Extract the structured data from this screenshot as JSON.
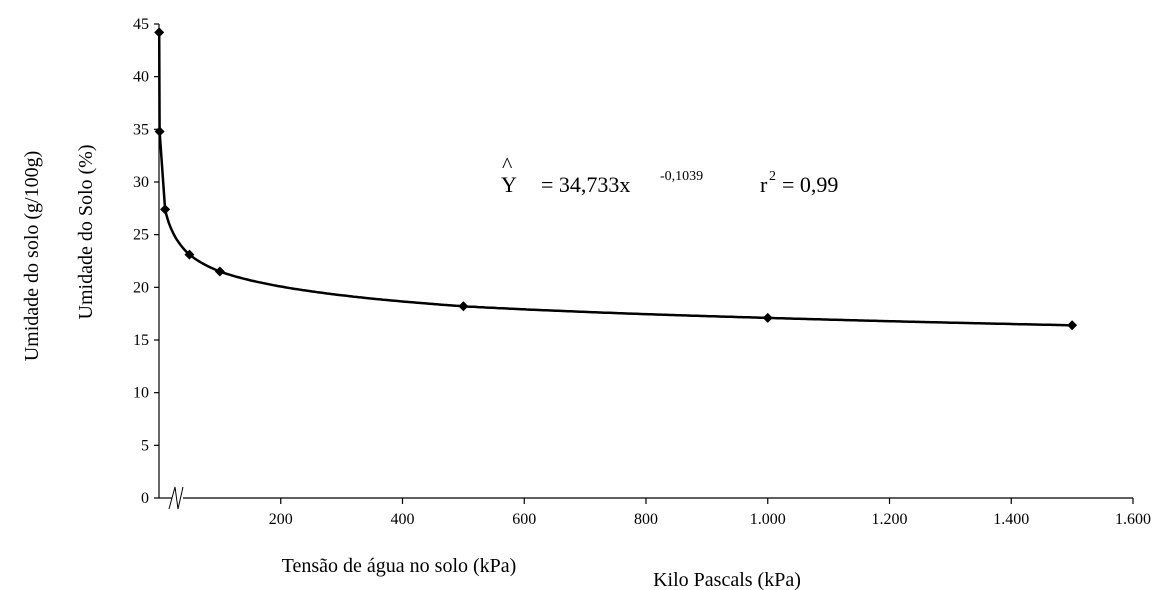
{
  "chart_data": {
    "type": "line",
    "x_values": [
      0.33,
      1,
      10,
      50,
      100,
      500,
      1000,
      1500
    ],
    "series": [
      {
        "values": [
          44.2,
          34.8,
          27.4,
          23.1,
          21.5,
          18.2,
          17.1,
          16.4
        ],
        "color": "#000000",
        "marker": "diamond"
      }
    ],
    "fit": {
      "a": 34.733,
      "b": -0.1039,
      "equation_y": "Y",
      "equation_hat": "^",
      "equation_body": "= 34,733x",
      "equation_exponent": "-0,1039",
      "r2_prefix": "r",
      "r2_exponent": "2",
      "r2_value": "= 0,99"
    },
    "xlabel": "Kilo Pascals (kPa)",
    "xlabel_overlay": "Tensão de água no solo (kPa)",
    "ylabel": "Umidade do Solo (%)",
    "ylabel_overlay": "Umidade do solo (g/100g)",
    "xlim": [
      0,
      1600
    ],
    "ylim": [
      0,
      45
    ],
    "x_ticks": [
      200,
      400,
      600,
      800,
      1000,
      1200,
      1400,
      1600
    ],
    "x_tick_labels": [
      "200",
      "400",
      "600",
      "800",
      "1.000",
      "1.200",
      "1.400",
      "1.600"
    ],
    "y_ticks": [
      0,
      5,
      10,
      15,
      20,
      25,
      30,
      35,
      40,
      45
    ],
    "y_tick_labels": [
      "0",
      "5",
      "10",
      "15",
      "20",
      "25",
      "30",
      "35",
      "40",
      "45"
    ],
    "grid": false,
    "axis_break": true
  }
}
